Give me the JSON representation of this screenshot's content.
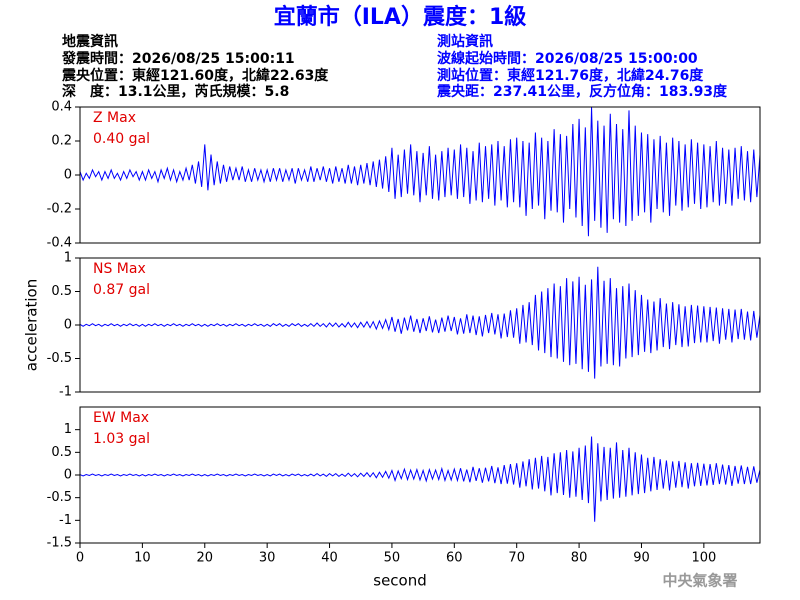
{
  "header": {
    "title": "宜蘭市（ILA）震度：1級",
    "left": [
      "地震資訊",
      "發震時間：2026/08/25 15:00:11",
      "震央位置：東經121.60度，北緯22.63度",
      "深　度：13.1公里，芮氏規模：5.8"
    ],
    "right": [
      "測站資訊",
      "波線起始時間：2026/08/25 15:00:00",
      "測站位置：東經121.76度，北緯24.76度",
      "震央距：237.41公里，反方位角：183.93度"
    ]
  },
  "footer": "中央氣象署",
  "chart_data": [
    {
      "type": "line",
      "annotation": [
        "Z Max",
        "0.40 gal"
      ],
      "color": "#0000ff",
      "xlim": [
        0,
        109
      ],
      "ylim": [
        -0.4,
        0.4
      ],
      "yticks": [
        0.4,
        0.2,
        0,
        -0.2,
        -0.4
      ],
      "x": [
        0,
        0.5,
        1,
        1.5,
        2,
        2.5,
        3,
        3.5,
        4,
        4.5,
        5,
        5.5,
        6,
        6.5,
        7,
        7.5,
        8,
        8.5,
        9,
        9.5,
        10,
        10.5,
        11,
        11.5,
        12,
        12.5,
        13,
        13.5,
        14,
        14.5,
        15,
        15.5,
        16,
        16.5,
        17,
        17.5,
        18,
        18.5,
        19,
        19.5,
        20,
        20.5,
        21,
        21.5,
        22,
        22.5,
        23,
        23.5,
        24,
        24.5,
        25,
        25.5,
        26,
        26.5,
        27,
        27.5,
        28,
        28.5,
        29,
        29.5,
        30,
        30.5,
        31,
        31.5,
        32,
        32.5,
        33,
        33.5,
        34,
        34.5,
        35,
        35.5,
        36,
        36.5,
        37,
        37.5,
        38,
        38.5,
        39,
        39.5,
        40,
        40.5,
        41,
        41.5,
        42,
        42.5,
        43,
        43.5,
        44,
        44.5,
        45,
        45.5,
        46,
        46.5,
        47,
        47.5,
        48,
        48.5,
        49,
        49.5,
        50,
        50.5,
        51,
        51.5,
        52,
        52.5,
        53,
        53.5,
        54,
        54.5,
        55,
        55.5,
        56,
        56.5,
        57,
        57.5,
        58,
        58.5,
        59,
        59.5,
        60,
        60.5,
        61,
        61.5,
        62,
        62.5,
        63,
        63.5,
        64,
        64.5,
        65,
        65.5,
        66,
        66.5,
        67,
        67.5,
        68,
        68.5,
        69,
        69.5,
        70,
        70.5,
        71,
        71.5,
        72,
        72.5,
        73,
        73.5,
        74,
        74.5,
        75,
        75.5,
        76,
        76.5,
        77,
        77.5,
        78,
        78.5,
        79,
        79.5,
        80,
        80.5,
        81,
        81.5,
        82,
        82.5,
        83,
        83.5,
        84,
        84.5,
        85,
        85.5,
        86,
        86.5,
        87,
        87.5,
        88,
        88.5,
        89,
        89.5,
        90,
        90.5,
        91,
        91.5,
        92,
        92.5,
        93,
        93.5,
        94,
        94.5,
        95,
        95.5,
        96,
        96.5,
        97,
        97.5,
        98,
        98.5,
        99,
        99.5,
        100,
        100.5,
        101,
        101.5,
        102,
        102.5,
        103,
        103.5,
        104,
        104.5,
        105,
        105.5,
        106,
        106.5,
        107,
        107.5,
        108,
        108.5,
        109
      ],
      "values": [
        0.02,
        -0.03,
        0.01,
        -0.02,
        0.03,
        -0.01,
        0.02,
        -0.03,
        0.02,
        -0.02,
        0.03,
        -0.02,
        0.01,
        -0.03,
        0.02,
        -0.02,
        0.03,
        -0.01,
        0.02,
        -0.03,
        0.02,
        -0.03,
        0.03,
        -0.02,
        0.02,
        -0.04,
        0.03,
        -0.02,
        0.04,
        -0.03,
        0.03,
        -0.04,
        0.02,
        -0.03,
        0.04,
        -0.03,
        0.06,
        -0.05,
        0.08,
        -0.07,
        0.18,
        -0.09,
        0.12,
        -0.06,
        0.08,
        -0.05,
        0.06,
        -0.04,
        0.05,
        -0.03,
        0.04,
        -0.03,
        0.05,
        -0.04,
        0.03,
        -0.04,
        0.04,
        -0.03,
        0.03,
        -0.04,
        0.03,
        -0.04,
        0.04,
        -0.03,
        0.04,
        -0.04,
        0.03,
        -0.03,
        0.04,
        -0.05,
        0.04,
        -0.03,
        0.03,
        -0.04,
        0.05,
        -0.04,
        0.04,
        -0.03,
        0.05,
        -0.04,
        0.04,
        -0.05,
        0.05,
        -0.04,
        0.04,
        -0.05,
        0.06,
        -0.05,
        0.05,
        -0.06,
        0.06,
        -0.05,
        0.07,
        -0.06,
        0.08,
        -0.07,
        0.09,
        -0.08,
        0.11,
        -0.1,
        0.16,
        -0.14,
        0.12,
        -0.13,
        0.15,
        -0.11,
        0.18,
        -0.12,
        0.14,
        -0.16,
        0.13,
        -0.12,
        0.17,
        -0.14,
        0.12,
        -0.15,
        0.14,
        -0.13,
        0.16,
        -0.12,
        0.15,
        -0.14,
        0.18,
        -0.13,
        0.16,
        -0.17,
        0.14,
        -0.15,
        0.19,
        -0.16,
        0.17,
        -0.14,
        0.18,
        -0.18,
        0.2,
        -0.15,
        0.17,
        -0.19,
        0.21,
        -0.16,
        0.22,
        -0.19,
        0.2,
        -0.24,
        0.19,
        -0.2,
        0.25,
        -0.18,
        0.22,
        -0.26,
        0.2,
        -0.21,
        0.27,
        -0.22,
        0.24,
        -0.28,
        0.23,
        -0.2,
        0.3,
        -0.25,
        0.33,
        -0.3,
        0.28,
        -0.36,
        0.4,
        -0.27,
        0.32,
        -0.31,
        0.29,
        -0.34,
        0.36,
        -0.26,
        0.3,
        -0.28,
        0.27,
        -0.3,
        0.38,
        -0.27,
        0.29,
        -0.24,
        0.25,
        -0.22,
        0.24,
        -0.28,
        0.21,
        -0.2,
        0.23,
        -0.22,
        0.19,
        -0.24,
        0.22,
        -0.18,
        0.2,
        -0.21,
        0.18,
        -0.19,
        0.21,
        -0.17,
        0.19,
        -0.2,
        0.18,
        -0.19,
        0.17,
        -0.16,
        0.2,
        -0.18,
        0.16,
        -0.17,
        0.15,
        -0.18,
        0.16,
        -0.14,
        0.17,
        -0.15,
        0.14,
        -0.16,
        0.15,
        -0.13,
        0.12
      ]
    },
    {
      "type": "line",
      "annotation": [
        "NS Max",
        "0.87 gal"
      ],
      "color": "#0000ff",
      "xlim": [
        0,
        109
      ],
      "ylim": [
        -1,
        1
      ],
      "yticks": [
        1,
        0.5,
        0,
        -0.5,
        -1
      ],
      "ylabel": "acceleration",
      "x": [
        0,
        0.5,
        1,
        1.5,
        2,
        2.5,
        3,
        3.5,
        4,
        4.5,
        5,
        5.5,
        6,
        6.5,
        7,
        7.5,
        8,
        8.5,
        9,
        9.5,
        10,
        10.5,
        11,
        11.5,
        12,
        12.5,
        13,
        13.5,
        14,
        14.5,
        15,
        15.5,
        16,
        16.5,
        17,
        17.5,
        18,
        18.5,
        19,
        19.5,
        20,
        20.5,
        21,
        21.5,
        22,
        22.5,
        23,
        23.5,
        24,
        24.5,
        25,
        25.5,
        26,
        26.5,
        27,
        27.5,
        28,
        28.5,
        29,
        29.5,
        30,
        30.5,
        31,
        31.5,
        32,
        32.5,
        33,
        33.5,
        34,
        34.5,
        35,
        35.5,
        36,
        36.5,
        37,
        37.5,
        38,
        38.5,
        39,
        39.5,
        40,
        40.5,
        41,
        41.5,
        42,
        42.5,
        43,
        43.5,
        44,
        44.5,
        45,
        45.5,
        46,
        46.5,
        47,
        47.5,
        48,
        48.5,
        49,
        49.5,
        50,
        50.5,
        51,
        51.5,
        52,
        52.5,
        53,
        53.5,
        54,
        54.5,
        55,
        55.5,
        56,
        56.5,
        57,
        57.5,
        58,
        58.5,
        59,
        59.5,
        60,
        60.5,
        61,
        61.5,
        62,
        62.5,
        63,
        63.5,
        64,
        64.5,
        65,
        65.5,
        66,
        66.5,
        67,
        67.5,
        68,
        68.5,
        69,
        69.5,
        70,
        70.5,
        71,
        71.5,
        72,
        72.5,
        73,
        73.5,
        74,
        74.5,
        75,
        75.5,
        76,
        76.5,
        77,
        77.5,
        78,
        78.5,
        79,
        79.5,
        80,
        80.5,
        81,
        81.5,
        82,
        82.5,
        83,
        83.5,
        84,
        84.5,
        85,
        85.5,
        86,
        86.5,
        87,
        87.5,
        88,
        88.5,
        89,
        89.5,
        90,
        90.5,
        91,
        91.5,
        92,
        92.5,
        93,
        93.5,
        94,
        94.5,
        95,
        95.5,
        96,
        96.5,
        97,
        97.5,
        98,
        98.5,
        99,
        99.5,
        100,
        100.5,
        101,
        101.5,
        102,
        102.5,
        103,
        103.5,
        104,
        104.5,
        105,
        105.5,
        106,
        106.5,
        107,
        107.5,
        108,
        108.5,
        109
      ],
      "values": [
        0.01,
        -0.02,
        0.01,
        -0.01,
        0.02,
        -0.01,
        0.01,
        -0.02,
        0.01,
        -0.01,
        0.02,
        -0.01,
        0.01,
        -0.02,
        0.01,
        -0.01,
        0.02,
        -0.01,
        0.01,
        -0.02,
        0.01,
        -0.02,
        0.01,
        -0.01,
        0.02,
        -0.01,
        0.01,
        -0.02,
        0.01,
        -0.01,
        0.02,
        -0.01,
        0.01,
        -0.02,
        0.01,
        -0.01,
        0.02,
        -0.01,
        0.01,
        -0.02,
        0.01,
        -0.02,
        0.01,
        -0.01,
        0.02,
        -0.01,
        0.01,
        -0.02,
        0.01,
        -0.01,
        0.02,
        -0.01,
        0.01,
        -0.02,
        0.01,
        -0.01,
        0.02,
        -0.01,
        0.01,
        -0.02,
        0.01,
        -0.02,
        0.02,
        -0.01,
        0.02,
        -0.02,
        0.01,
        -0.02,
        0.02,
        -0.01,
        0.02,
        -0.02,
        0.01,
        -0.02,
        0.02,
        -0.02,
        0.03,
        -0.02,
        0.02,
        -0.03,
        0.03,
        -0.02,
        0.03,
        -0.03,
        0.02,
        -0.03,
        0.04,
        -0.03,
        0.03,
        -0.04,
        0.04,
        -0.03,
        0.05,
        -0.04,
        0.05,
        -0.06,
        0.06,
        -0.05,
        0.08,
        -0.07,
        0.12,
        -0.1,
        0.09,
        -0.13,
        0.11,
        -0.08,
        0.14,
        -0.1,
        0.09,
        -0.12,
        0.1,
        -0.09,
        0.13,
        -0.11,
        0.08,
        -0.12,
        0.11,
        -0.1,
        0.14,
        -0.09,
        0.12,
        -0.14,
        0.1,
        -0.13,
        0.16,
        -0.12,
        0.14,
        -0.15,
        0.13,
        -0.17,
        0.15,
        -0.12,
        0.18,
        -0.14,
        0.16,
        -0.2,
        0.17,
        -0.18,
        0.22,
        -0.19,
        0.25,
        -0.28,
        0.3,
        -0.26,
        0.34,
        -0.3,
        0.45,
        -0.38,
        0.5,
        -0.42,
        0.55,
        -0.48,
        0.62,
        -0.5,
        0.58,
        -0.55,
        0.7,
        -0.6,
        0.65,
        -0.58,
        0.72,
        -0.66,
        0.6,
        -0.7,
        0.68,
        -0.8,
        0.87,
        -0.62,
        0.66,
        -0.58,
        0.7,
        -0.6,
        0.55,
        -0.62,
        0.58,
        -0.5,
        0.62,
        -0.48,
        0.52,
        -0.45,
        0.45,
        -0.4,
        0.38,
        -0.42,
        0.35,
        -0.38,
        0.4,
        -0.33,
        0.32,
        -0.36,
        0.34,
        -0.3,
        0.31,
        -0.33,
        0.28,
        -0.32,
        0.3,
        -0.27,
        0.29,
        -0.26,
        0.28,
        -0.26,
        0.27,
        -0.24,
        0.26,
        -0.28,
        0.25,
        -0.22,
        0.24,
        -0.26,
        0.23,
        -0.21,
        0.24,
        -0.22,
        0.2,
        -0.23,
        0.21,
        -0.19,
        0.15
      ]
    },
    {
      "type": "line",
      "annotation": [
        "EW Max",
        "1.03 gal"
      ],
      "color": "#0000ff",
      "xlim": [
        0,
        109
      ],
      "ylim": [
        -1.5,
        1.5
      ],
      "yticks": [
        1,
        0.5,
        0,
        -0.5,
        -1,
        -1.5
      ],
      "xticks": [
        0,
        10,
        20,
        30,
        40,
        50,
        60,
        70,
        80,
        90,
        100
      ],
      "xlabel": "second",
      "x": [
        0,
        0.5,
        1,
        1.5,
        2,
        2.5,
        3,
        3.5,
        4,
        4.5,
        5,
        5.5,
        6,
        6.5,
        7,
        7.5,
        8,
        8.5,
        9,
        9.5,
        10,
        10.5,
        11,
        11.5,
        12,
        12.5,
        13,
        13.5,
        14,
        14.5,
        15,
        15.5,
        16,
        16.5,
        17,
        17.5,
        18,
        18.5,
        19,
        19.5,
        20,
        20.5,
        21,
        21.5,
        22,
        22.5,
        23,
        23.5,
        24,
        24.5,
        25,
        25.5,
        26,
        26.5,
        27,
        27.5,
        28,
        28.5,
        29,
        29.5,
        30,
        30.5,
        31,
        31.5,
        32,
        32.5,
        33,
        33.5,
        34,
        34.5,
        35,
        35.5,
        36,
        36.5,
        37,
        37.5,
        38,
        38.5,
        39,
        39.5,
        40,
        40.5,
        41,
        41.5,
        42,
        42.5,
        43,
        43.5,
        44,
        44.5,
        45,
        45.5,
        46,
        46.5,
        47,
        47.5,
        48,
        48.5,
        49,
        49.5,
        50,
        50.5,
        51,
        51.5,
        52,
        52.5,
        53,
        53.5,
        54,
        54.5,
        55,
        55.5,
        56,
        56.5,
        57,
        57.5,
        58,
        58.5,
        59,
        59.5,
        60,
        60.5,
        61,
        61.5,
        62,
        62.5,
        63,
        63.5,
        64,
        64.5,
        65,
        65.5,
        66,
        66.5,
        67,
        67.5,
        68,
        68.5,
        69,
        69.5,
        70,
        70.5,
        71,
        71.5,
        72,
        72.5,
        73,
        73.5,
        74,
        74.5,
        75,
        75.5,
        76,
        76.5,
        77,
        77.5,
        78,
        78.5,
        79,
        79.5,
        80,
        80.5,
        81,
        81.5,
        82,
        82.5,
        83,
        83.5,
        84,
        84.5,
        85,
        85.5,
        86,
        86.5,
        87,
        87.5,
        88,
        88.5,
        89,
        89.5,
        90,
        90.5,
        91,
        91.5,
        92,
        92.5,
        93,
        93.5,
        94,
        94.5,
        95,
        95.5,
        96,
        96.5,
        97,
        97.5,
        98,
        98.5,
        99,
        99.5,
        100,
        100.5,
        101,
        101.5,
        102,
        102.5,
        103,
        103.5,
        104,
        104.5,
        105,
        105.5,
        106,
        106.5,
        107,
        107.5,
        108,
        108.5,
        109
      ],
      "values": [
        0.01,
        -0.02,
        0.01,
        -0.01,
        0.02,
        -0.01,
        0.01,
        -0.02,
        0.01,
        -0.01,
        0.02,
        -0.01,
        0.01,
        -0.02,
        0.01,
        -0.01,
        0.02,
        -0.01,
        0.01,
        -0.02,
        0.01,
        -0.02,
        0.01,
        -0.01,
        0.02,
        -0.01,
        0.01,
        -0.02,
        0.01,
        -0.01,
        0.02,
        -0.01,
        0.01,
        -0.02,
        0.01,
        -0.01,
        0.02,
        -0.01,
        0.01,
        -0.02,
        0.01,
        -0.02,
        0.01,
        -0.01,
        0.02,
        -0.01,
        0.01,
        -0.02,
        0.01,
        -0.01,
        0.02,
        -0.01,
        0.01,
        -0.02,
        0.01,
        -0.01,
        0.02,
        -0.01,
        0.01,
        -0.02,
        0.01,
        -0.02,
        0.02,
        -0.01,
        0.02,
        -0.02,
        0.01,
        -0.02,
        0.02,
        -0.01,
        0.02,
        -0.02,
        0.01,
        -0.02,
        0.02,
        -0.02,
        0.03,
        -0.02,
        0.02,
        -0.03,
        0.03,
        -0.02,
        0.03,
        -0.03,
        0.02,
        -0.03,
        0.04,
        -0.03,
        0.03,
        -0.04,
        0.04,
        -0.03,
        0.05,
        -0.04,
        0.05,
        -0.06,
        0.06,
        -0.05,
        0.08,
        -0.07,
        0.1,
        -0.12,
        0.09,
        -0.08,
        0.13,
        -0.1,
        0.11,
        -0.09,
        0.12,
        -0.11,
        0.1,
        -0.13,
        0.12,
        -0.09,
        0.11,
        -0.1,
        0.14,
        -0.12,
        0.1,
        -0.11,
        0.13,
        -0.12,
        0.15,
        -0.14,
        0.12,
        -0.16,
        0.18,
        -0.13,
        0.15,
        -0.17,
        0.16,
        -0.14,
        0.2,
        -0.18,
        0.17,
        -0.2,
        0.22,
        -0.19,
        0.24,
        -0.21,
        0.26,
        -0.28,
        0.3,
        -0.25,
        0.35,
        -0.32,
        0.38,
        -0.3,
        0.42,
        -0.36,
        0.4,
        -0.45,
        0.48,
        -0.4,
        0.5,
        -0.44,
        0.55,
        -0.5,
        0.52,
        -0.48,
        0.6,
        -0.55,
        0.65,
        -0.62,
        0.85,
        -1.03,
        0.7,
        -0.58,
        0.62,
        -0.55,
        0.6,
        -0.52,
        0.72,
        -0.5,
        0.55,
        -0.48,
        0.6,
        -0.45,
        0.5,
        -0.42,
        0.45,
        -0.4,
        0.38,
        -0.36,
        0.4,
        -0.33,
        0.35,
        -0.3,
        0.32,
        -0.34,
        0.3,
        -0.28,
        0.31,
        -0.27,
        0.28,
        -0.3,
        0.26,
        -0.25,
        0.27,
        -0.24,
        0.25,
        -0.23,
        0.24,
        -0.22,
        0.26,
        -0.2,
        0.23,
        -0.21,
        0.22,
        -0.24,
        0.2,
        -0.19,
        0.21,
        -0.2,
        0.18,
        -0.2,
        0.19,
        -0.17,
        0.12
      ]
    }
  ]
}
